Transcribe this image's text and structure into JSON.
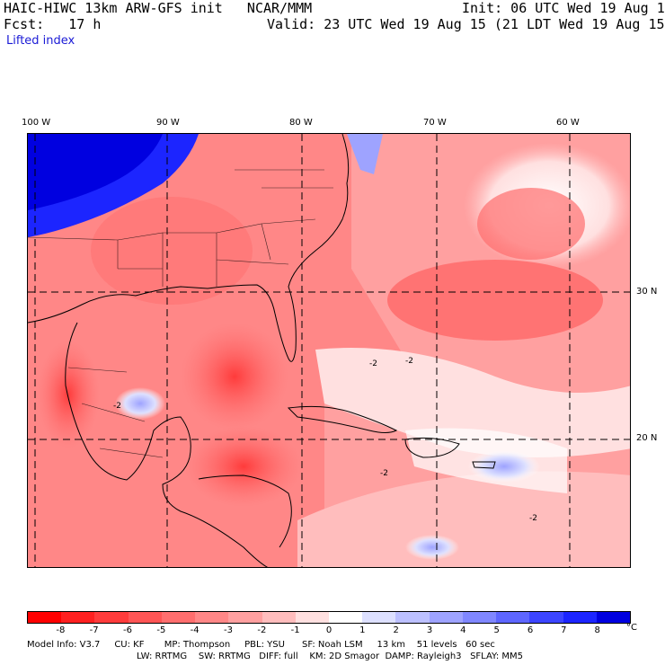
{
  "header": {
    "title": "HAIC-HIWC 13km ARW-GFS init   NCAR/MMM",
    "init": "Init: 06 UTC Wed 19 Aug 15",
    "fcst": "Fcst:   17 h",
    "valid": "Valid: 23 UTC Wed 19 Aug 15 (21 LDT Wed 19 Aug 15)",
    "field": "Lifted index"
  },
  "map": {
    "lon_labels": [
      "100 W",
      "90 W",
      "80 W",
      "70 W",
      "60 W"
    ],
    "lat_labels": [
      "30 N",
      "20 N"
    ],
    "contour_label": "-2"
  },
  "legend": {
    "labels": [
      "-8",
      "-7",
      "-6",
      "-5",
      "-4",
      "-3",
      "-2",
      "-1",
      "0",
      "1",
      "2",
      "3",
      "4",
      "5",
      "6",
      "7",
      "8"
    ],
    "unit": "°C",
    "colors": [
      "#ff0000",
      "#ff2020",
      "#ff3b3b",
      "#ff5555",
      "#ff6e6e",
      "#ff8787",
      "#ffa0a0",
      "#ffbdbd",
      "#ffe0e0",
      "#ffffff",
      "#dde0ff",
      "#bcc0ff",
      "#9ea3ff",
      "#8087ff",
      "#5e66ff",
      "#3c45ff",
      "#1c25ff",
      "#0000e0"
    ]
  },
  "footer": {
    "line1": "Model Info: V3.7     CU: KF       MP: Thompson     PBL: YSU      SF: Noah LSM     13 km    51 levels   60 sec",
    "line2": "LW: RRTMG    SW: RRTMG   DIFF: full    KM: 2D Smagor  DAMP: Rayleigh3   SFLAY: MM5"
  }
}
